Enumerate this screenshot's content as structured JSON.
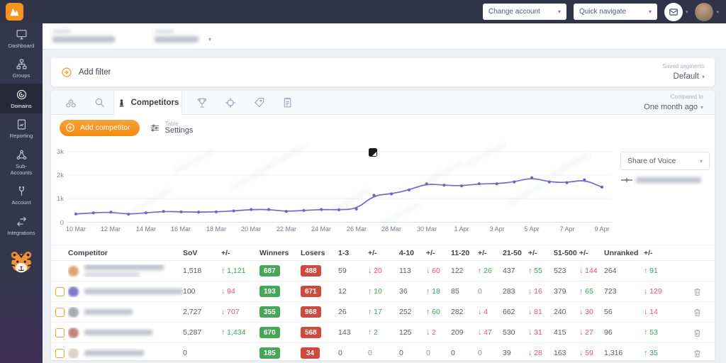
{
  "topbar": {
    "change_account": "Change account",
    "quick_navigate": "Quick navigate"
  },
  "sidebar": {
    "items": [
      {
        "label": "Dashboard"
      },
      {
        "label": "Groups"
      },
      {
        "label": "Domains"
      },
      {
        "label": "Reporting"
      },
      {
        "label": "Sub-Accounts"
      },
      {
        "label": "Account"
      },
      {
        "label": "Integrations"
      }
    ]
  },
  "filterbar": {
    "add_filter": "Add filter",
    "segments_caption": "Saved segments",
    "segments_value": "Default"
  },
  "tabs": {
    "active_label": "Competitors",
    "compared_caption": "Compared to",
    "compared_value": "One month ago"
  },
  "toolbar": {
    "add_competitor": "Add competitor",
    "table_caption": "Table",
    "settings_label": "Settings"
  },
  "chart_panel": {
    "metric_dropdown": "Share of Voice"
  },
  "chart_data": {
    "type": "line",
    "title": "Share of Voice",
    "x": [
      "10 Mar",
      "11 Mar",
      "12 Mar",
      "13 Mar",
      "14 Mar",
      "15 Mar",
      "16 Mar",
      "17 Mar",
      "18 Mar",
      "19 Mar",
      "20 Mar",
      "21 Mar",
      "22 Mar",
      "23 Mar",
      "24 Mar",
      "25 Mar",
      "26 Mar",
      "27 Mar",
      "28 Mar",
      "29 Mar",
      "30 Mar",
      "31 Mar",
      "1 Apr",
      "2 Apr",
      "3 Apr",
      "4 Apr",
      "5 Apr",
      "6 Apr",
      "7 Apr",
      "8 Apr",
      "9 Apr"
    ],
    "values": [
      350,
      400,
      430,
      340,
      400,
      460,
      440,
      430,
      440,
      480,
      540,
      540,
      460,
      500,
      540,
      530,
      560,
      1140,
      1200,
      1370,
      1630,
      1570,
      1540,
      1630,
      1630,
      1710,
      1890,
      1710,
      1680,
      1800,
      1490
    ],
    "x_tick_labels": [
      "10 Mar",
      "12 Mar",
      "14 Mar",
      "16 Mar",
      "18 Mar",
      "20 Mar",
      "22 Mar",
      "24 Mar",
      "26 Mar",
      "28 Mar",
      "30 Mar",
      "1 Apr",
      "3 Apr",
      "5 Apr",
      "7 Apr",
      "9 Apr"
    ],
    "y_tick_labels": [
      "3k",
      "2k",
      "1k",
      "0"
    ],
    "ylim": [
      0,
      3200
    ],
    "grid": true,
    "legend_position": "right",
    "line_color": "#7468ca"
  },
  "table": {
    "columns": [
      "Competitor",
      "SoV",
      "+/-",
      "Winners",
      "Losers",
      "1-3",
      "+/-",
      "4-10",
      "+/-",
      "11-20",
      "+/-",
      "21-50",
      "+/-",
      "51-500",
      "+/-",
      "Unranked",
      "+/-"
    ],
    "rows": [
      {
        "has_checkbox": false,
        "has_trash": false,
        "two_line": true,
        "sov": "1,518",
        "sov_delta": {
          "dir": "up",
          "val": "1,121"
        },
        "winners": "687",
        "losers": "488",
        "ranks": [
          {
            "val": "59",
            "delta": {
              "dir": "down",
              "val": "20"
            }
          },
          {
            "val": "113",
            "delta": {
              "dir": "down",
              "val": "60"
            }
          },
          {
            "val": "122",
            "delta": {
              "dir": "up",
              "val": "26"
            }
          },
          {
            "val": "437",
            "delta": {
              "dir": "up",
              "val": "55"
            }
          },
          {
            "val": "523",
            "delta": {
              "dir": "down",
              "val": "144"
            }
          },
          {
            "val": "264",
            "delta": {
              "dir": "up",
              "val": "91"
            }
          }
        ]
      },
      {
        "has_checkbox": true,
        "has_trash": true,
        "two_line": false,
        "sov": "100",
        "sov_delta": {
          "dir": "down",
          "val": "94"
        },
        "winners": "193",
        "losers": "671",
        "ranks": [
          {
            "val": "12",
            "delta": {
              "dir": "up",
              "val": "10"
            }
          },
          {
            "val": "36",
            "delta": {
              "dir": "up",
              "val": "18"
            }
          },
          {
            "val": "85",
            "delta": {
              "dir": "none",
              "val": "0"
            }
          },
          {
            "val": "283",
            "delta": {
              "dir": "down",
              "val": "16"
            }
          },
          {
            "val": "379",
            "delta": {
              "dir": "up",
              "val": "65"
            }
          },
          {
            "val": "723",
            "delta": {
              "dir": "down",
              "val": "129"
            }
          }
        ]
      },
      {
        "has_checkbox": true,
        "has_trash": true,
        "two_line": false,
        "sov": "2,727",
        "sov_delta": {
          "dir": "down",
          "val": "707"
        },
        "winners": "355",
        "losers": "968",
        "ranks": [
          {
            "val": "26",
            "delta": {
              "dir": "up",
              "val": "17"
            }
          },
          {
            "val": "252",
            "delta": {
              "dir": "up",
              "val": "60"
            }
          },
          {
            "val": "282",
            "delta": {
              "dir": "down",
              "val": "4"
            }
          },
          {
            "val": "662",
            "delta": {
              "dir": "down",
              "val": "81"
            }
          },
          {
            "val": "240",
            "delta": {
              "dir": "down",
              "val": "30"
            }
          },
          {
            "val": "56",
            "delta": {
              "dir": "down",
              "val": "14"
            }
          }
        ]
      },
      {
        "has_checkbox": true,
        "has_trash": true,
        "two_line": false,
        "sov": "5,287",
        "sov_delta": {
          "dir": "up",
          "val": "1,434"
        },
        "winners": "670",
        "losers": "568",
        "ranks": [
          {
            "val": "143",
            "delta": {
              "dir": "up",
              "val": "2"
            }
          },
          {
            "val": "125",
            "delta": {
              "dir": "down",
              "val": "2"
            }
          },
          {
            "val": "209",
            "delta": {
              "dir": "down",
              "val": "47"
            }
          },
          {
            "val": "530",
            "delta": {
              "dir": "down",
              "val": "31"
            }
          },
          {
            "val": "415",
            "delta": {
              "dir": "down",
              "val": "27"
            }
          },
          {
            "val": "96",
            "delta": {
              "dir": "up",
              "val": "53"
            }
          }
        ]
      },
      {
        "has_checkbox": true,
        "has_trash": true,
        "two_line": false,
        "sov": "0",
        "sov_delta": null,
        "winners": "185",
        "losers": "34",
        "ranks": [
          {
            "val": "0",
            "delta": {
              "dir": "none",
              "val": "0"
            }
          },
          {
            "val": "0",
            "delta": {
              "dir": "none",
              "val": "0"
            }
          },
          {
            "val": "0",
            "delta": {
              "dir": "none",
              "val": "0"
            }
          },
          {
            "val": "39",
            "delta": {
              "dir": "down",
              "val": "28"
            }
          },
          {
            "val": "163",
            "delta": {
              "dir": "down",
              "val": "59"
            }
          },
          {
            "val": "1,316",
            "delta": {
              "dir": "up",
              "val": "35"
            }
          }
        ]
      }
    ]
  }
}
